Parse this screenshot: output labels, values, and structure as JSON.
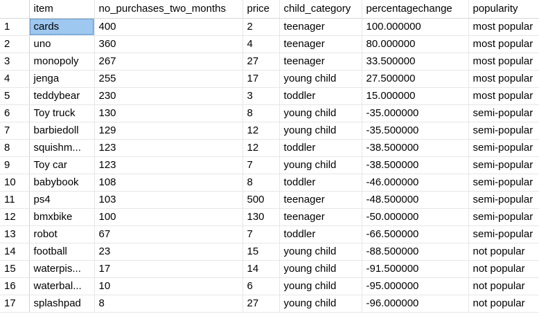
{
  "grid": {
    "columns": [
      {
        "key": "item",
        "label": "item"
      },
      {
        "key": "no_purchases_two_months",
        "label": "no_purchases_two_months"
      },
      {
        "key": "price",
        "label": "price"
      },
      {
        "key": "child_category",
        "label": "child_category"
      },
      {
        "key": "percentagechange",
        "label": "percentagechange"
      },
      {
        "key": "popularity",
        "label": "popularity"
      }
    ],
    "selected": {
      "row": 0,
      "col": 0
    },
    "rows": [
      {
        "num": "1",
        "cells": [
          "cards",
          "400",
          "2",
          "teenager",
          "100.000000",
          "most popular"
        ]
      },
      {
        "num": "2",
        "cells": [
          "uno",
          "360",
          "4",
          "teenager",
          "80.000000",
          "most popular"
        ]
      },
      {
        "num": "3",
        "cells": [
          "monopoly",
          "267",
          "27",
          "teenager",
          "33.500000",
          "most popular"
        ]
      },
      {
        "num": "4",
        "cells": [
          "jenga",
          "255",
          "17",
          "young child",
          "27.500000",
          "most popular"
        ]
      },
      {
        "num": "5",
        "cells": [
          "teddybear",
          "230",
          "3",
          "toddler",
          "15.000000",
          "most popular"
        ]
      },
      {
        "num": "6",
        "cells": [
          "Toy truck",
          "130",
          "8",
          "young child",
          "-35.000000",
          "semi-popular"
        ]
      },
      {
        "num": "7",
        "cells": [
          "barbiedoll",
          "129",
          "12",
          "young child",
          "-35.500000",
          "semi-popular"
        ]
      },
      {
        "num": "8",
        "cells": [
          "squishm...",
          "123",
          "12",
          "toddler",
          "-38.500000",
          "semi-popular"
        ]
      },
      {
        "num": "9",
        "cells": [
          "Toy car",
          "123",
          "7",
          "young child",
          "-38.500000",
          "semi-popular"
        ]
      },
      {
        "num": "10",
        "cells": [
          "babybook",
          "108",
          "8",
          "toddler",
          "-46.000000",
          "semi-popular"
        ]
      },
      {
        "num": "11",
        "cells": [
          "ps4",
          "103",
          "500",
          "teenager",
          "-48.500000",
          "semi-popular"
        ]
      },
      {
        "num": "12",
        "cells": [
          "bmxbike",
          "100",
          "130",
          "teenager",
          "-50.000000",
          "semi-popular"
        ]
      },
      {
        "num": "13",
        "cells": [
          "robot",
          "67",
          "7",
          "toddler",
          "-66.500000",
          "semi-popular"
        ]
      },
      {
        "num": "14",
        "cells": [
          "football",
          "23",
          "15",
          "young child",
          "-88.500000",
          "not popular"
        ]
      },
      {
        "num": "15",
        "cells": [
          "waterpis...",
          "17",
          "14",
          "young child",
          "-91.500000",
          "not popular"
        ]
      },
      {
        "num": "16",
        "cells": [
          "waterbal...",
          "10",
          "6",
          "young child",
          "-95.000000",
          "not popular"
        ]
      },
      {
        "num": "17",
        "cells": [
          "splashpad",
          "8",
          "27",
          "young child",
          "-96.000000",
          "not popular"
        ]
      }
    ]
  }
}
